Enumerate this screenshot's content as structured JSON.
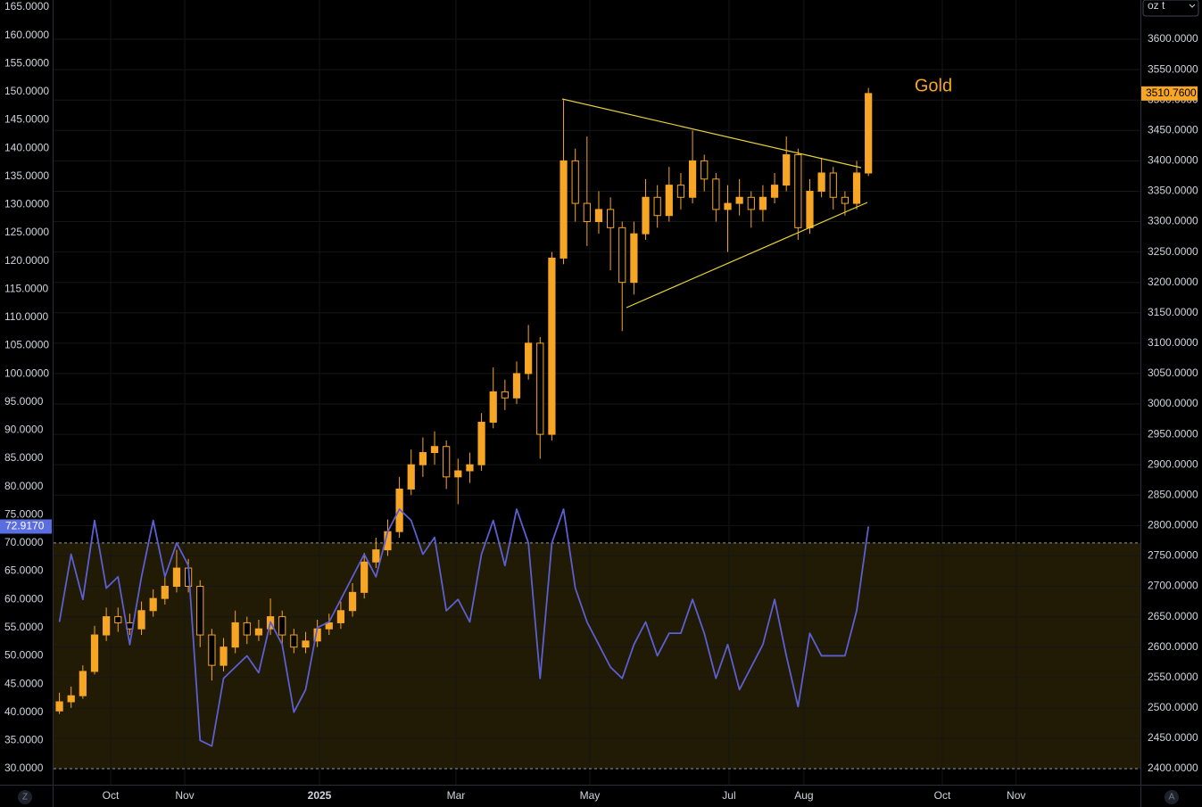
{
  "chart_data": {
    "type": "candlestick",
    "annotation": "Gold",
    "unit_selector": "oz t",
    "left_button": "Z",
    "right_button": "A",
    "xlim": [
      -0.5,
      92.2
    ],
    "xticks": [
      {
        "value": 4.37,
        "label": "Oct"
      },
      {
        "value": 10.69,
        "label": "Nov"
      },
      {
        "value": 22.18,
        "label": "2025"
      },
      {
        "value": 33.82,
        "label": "Mar"
      },
      {
        "value": 45.24,
        "label": "May"
      },
      {
        "value": 57.11,
        "label": "Jul"
      },
      {
        "value": 63.5,
        "label": "Aug"
      },
      {
        "value": 75.3,
        "label": "Oct"
      },
      {
        "value": 81.6,
        "label": "Nov"
      }
    ],
    "ylim": [
      27.15,
      166.26
    ],
    "yticks": [
      {
        "value": 30,
        "label": "30.0000"
      },
      {
        "value": 35,
        "label": "35.0000"
      },
      {
        "value": 40,
        "label": "40.0000"
      },
      {
        "value": 45,
        "label": "45.0000"
      },
      {
        "value": 50,
        "label": "50.0000"
      },
      {
        "value": 55,
        "label": "55.0000"
      },
      {
        "value": 60,
        "label": "60.0000"
      },
      {
        "value": 65,
        "label": "65.0000"
      },
      {
        "value": 70,
        "label": "70.0000"
      },
      {
        "value": 75,
        "label": "75.0000"
      },
      {
        "value": 80,
        "label": "80.0000"
      },
      {
        "value": 85,
        "label": "85.0000"
      },
      {
        "value": 90,
        "label": "90.0000"
      },
      {
        "value": 95,
        "label": "95.0000"
      },
      {
        "value": 100,
        "label": "100.0000"
      },
      {
        "value": 105,
        "label": "105.0000"
      },
      {
        "value": 110,
        "label": "110.0000"
      },
      {
        "value": 115,
        "label": "115.0000"
      },
      {
        "value": 120,
        "label": "120.0000"
      },
      {
        "value": 125,
        "label": "125.0000"
      },
      {
        "value": 130,
        "label": "130.0000"
      },
      {
        "value": 135,
        "label": "135.0000"
      },
      {
        "value": 140,
        "label": "140.0000"
      },
      {
        "value": 145,
        "label": "145.0000"
      },
      {
        "value": 150,
        "label": "150.0000"
      },
      {
        "value": 155,
        "label": "155.0000"
      },
      {
        "value": 160,
        "label": "160.0000"
      },
      {
        "value": 165,
        "label": "165.0000"
      }
    ],
    "y2lim": [
      2373.6,
      3664.6
    ],
    "y2ticks": [
      {
        "value": 2400,
        "label": "2400.0000"
      },
      {
        "value": 2450,
        "label": "2450.0000"
      },
      {
        "value": 2500,
        "label": "2500.0000"
      },
      {
        "value": 2550,
        "label": "2550.0000"
      },
      {
        "value": 2600,
        "label": "2600.0000"
      },
      {
        "value": 2650,
        "label": "2650.0000"
      },
      {
        "value": 2700,
        "label": "2700.0000"
      },
      {
        "value": 2750,
        "label": "2750.0000"
      },
      {
        "value": 2800,
        "label": "2800.0000"
      },
      {
        "value": 2850,
        "label": "2850.0000"
      },
      {
        "value": 2900,
        "label": "2900.0000"
      },
      {
        "value": 2950,
        "label": "2950.0000"
      },
      {
        "value": 3000,
        "label": "3000.0000"
      },
      {
        "value": 3050,
        "label": "3050.0000"
      },
      {
        "value": 3100,
        "label": "3100.0000"
      },
      {
        "value": 3150,
        "label": "3150.0000"
      },
      {
        "value": 3200,
        "label": "3200.0000"
      },
      {
        "value": 3250,
        "label": "3250.0000"
      },
      {
        "value": 3300,
        "label": "3300.0000"
      },
      {
        "value": 3350,
        "label": "3350.0000"
      },
      {
        "value": 3400,
        "label": "3400.0000"
      },
      {
        "value": 3450,
        "label": "3450.0000"
      },
      {
        "value": 3500,
        "label": "3500.0000"
      },
      {
        "value": 3550,
        "label": "3550.0000"
      },
      {
        "value": 3600,
        "label": "3600.0000"
      }
    ],
    "band": [
      30,
      70
    ],
    "band_color": "#211a05",
    "grid": true,
    "series": [
      {
        "type": "candlestick",
        "axis": "y2",
        "color": "#f7a525",
        "last_label": "3510.7600",
        "ohlc": [
          [
            2495,
            2525,
            2490,
            2510
          ],
          [
            2510,
            2535,
            2500,
            2520
          ],
          [
            2520,
            2570,
            2515,
            2560
          ],
          [
            2560,
            2635,
            2555,
            2620
          ],
          [
            2620,
            2665,
            2610,
            2650
          ],
          [
            2650,
            2665,
            2625,
            2640
          ],
          [
            2640,
            2655,
            2620,
            2630
          ],
          [
            2630,
            2675,
            2620,
            2660
          ],
          [
            2660,
            2695,
            2650,
            2680
          ],
          [
            2680,
            2720,
            2670,
            2700
          ],
          [
            2700,
            2760,
            2690,
            2730
          ],
          [
            2730,
            2745,
            2690,
            2700
          ],
          [
            2700,
            2710,
            2600,
            2620
          ],
          [
            2620,
            2630,
            2545,
            2570
          ],
          [
            2570,
            2615,
            2560,
            2600
          ],
          [
            2600,
            2660,
            2590,
            2640
          ],
          [
            2640,
            2650,
            2605,
            2620
          ],
          [
            2620,
            2645,
            2610,
            2630
          ],
          [
            2630,
            2680,
            2620,
            2650
          ],
          [
            2650,
            2660,
            2605,
            2620
          ],
          [
            2620,
            2630,
            2590,
            2600
          ],
          [
            2600,
            2625,
            2590,
            2610
          ],
          [
            2610,
            2645,
            2600,
            2630
          ],
          [
            2630,
            2655,
            2620,
            2640
          ],
          [
            2640,
            2675,
            2630,
            2660
          ],
          [
            2660,
            2705,
            2650,
            2690
          ],
          [
            2690,
            2755,
            2680,
            2740
          ],
          [
            2740,
            2780,
            2730,
            2760
          ],
          [
            2760,
            2810,
            2750,
            2790
          ],
          [
            2790,
            2880,
            2780,
            2860
          ],
          [
            2860,
            2925,
            2850,
            2900
          ],
          [
            2900,
            2945,
            2880,
            2920
          ],
          [
            2920,
            2955,
            2900,
            2930
          ],
          [
            2930,
            2940,
            2860,
            2880
          ],
          [
            2880,
            2910,
            2835,
            2890
          ],
          [
            2890,
            2920,
            2870,
            2900
          ],
          [
            2900,
            2985,
            2890,
            2970
          ],
          [
            2970,
            3060,
            2960,
            3020
          ],
          [
            3020,
            3040,
            2990,
            3010
          ],
          [
            3010,
            3070,
            3000,
            3050
          ],
          [
            3050,
            3130,
            3040,
            3100
          ],
          [
            3100,
            3110,
            2910,
            2950
          ],
          [
            2950,
            3250,
            2940,
            3240
          ],
          [
            3240,
            3500,
            3230,
            3400
          ],
          [
            3400,
            3420,
            3300,
            3330
          ],
          [
            3330,
            3440,
            3260,
            3300
          ],
          [
            3300,
            3350,
            3280,
            3320
          ],
          [
            3320,
            3340,
            3220,
            3290
          ],
          [
            3290,
            3300,
            3120,
            3200
          ],
          [
            3200,
            3300,
            3180,
            3280
          ],
          [
            3280,
            3370,
            3270,
            3340
          ],
          [
            3340,
            3360,
            3290,
            3310
          ],
          [
            3310,
            3390,
            3300,
            3360
          ],
          [
            3360,
            3380,
            3320,
            3340
          ],
          [
            3340,
            3450,
            3330,
            3400
          ],
          [
            3400,
            3410,
            3350,
            3370
          ],
          [
            3370,
            3380,
            3300,
            3320
          ],
          [
            3320,
            3360,
            3250,
            3330
          ],
          [
            3330,
            3370,
            3310,
            3340
          ],
          [
            3340,
            3350,
            3290,
            3320
          ],
          [
            3320,
            3360,
            3300,
            3340
          ],
          [
            3340,
            3380,
            3330,
            3360
          ],
          [
            3360,
            3440,
            3350,
            3410
          ],
          [
            3410,
            3420,
            3270,
            3290
          ],
          [
            3290,
            3370,
            3280,
            3350
          ],
          [
            3350,
            3405,
            3340,
            3380
          ],
          [
            3380,
            3390,
            3320,
            3340
          ],
          [
            3340,
            3350,
            3310,
            3330
          ],
          [
            3330,
            3400,
            3320,
            3380
          ],
          [
            3380,
            3520,
            3375,
            3510.76
          ]
        ]
      },
      {
        "type": "line",
        "axis": "y",
        "color": "#5b5fd0",
        "last_label": "72.9170",
        "values": [
          56,
          68,
          60,
          74,
          62,
          64,
          52,
          64,
          74,
          64,
          70,
          66,
          35,
          34,
          46,
          48,
          50,
          47,
          56,
          52,
          40,
          44,
          55,
          56,
          60,
          64,
          68,
          64,
          72,
          76,
          74,
          68,
          71,
          58,
          60,
          56,
          68,
          74,
          66,
          76,
          70,
          46,
          70,
          76,
          62,
          56,
          52,
          48,
          46,
          52,
          56,
          50,
          54,
          54,
          60,
          54,
          46,
          52,
          44,
          48,
          52,
          60,
          50,
          41,
          54,
          50,
          50,
          50,
          58,
          72.917
        ]
      }
    ]
  }
}
